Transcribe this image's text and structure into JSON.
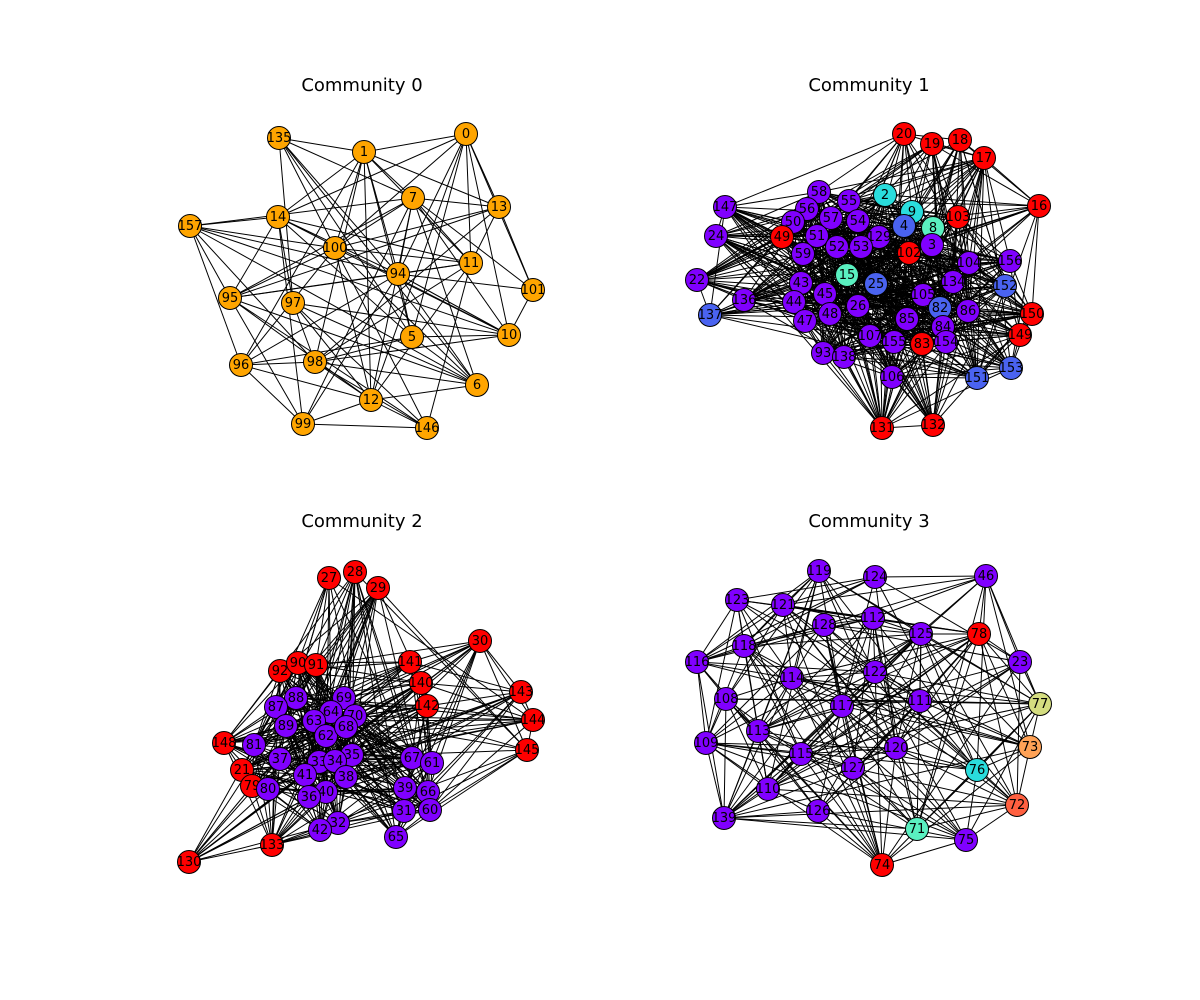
{
  "panels": [
    {
      "title": "Community 0",
      "nodes": [
        {
          "id": "0",
          "c": "#ffa500"
        },
        {
          "id": "135",
          "c": "#ffa500"
        },
        {
          "id": "1",
          "c": "#ffa500"
        },
        {
          "id": "7",
          "c": "#ffa500"
        },
        {
          "id": "13",
          "c": "#ffa500"
        },
        {
          "id": "157",
          "c": "#ffa500"
        },
        {
          "id": "14",
          "c": "#ffa500"
        },
        {
          "id": "100",
          "c": "#ffa500"
        },
        {
          "id": "11",
          "c": "#ffa500"
        },
        {
          "id": "94",
          "c": "#ffa500"
        },
        {
          "id": "101",
          "c": "#ffa500"
        },
        {
          "id": "95",
          "c": "#ffa500"
        },
        {
          "id": "97",
          "c": "#ffa500"
        },
        {
          "id": "10",
          "c": "#ffa500"
        },
        {
          "id": "5",
          "c": "#ffa500"
        },
        {
          "id": "96",
          "c": "#ffa500"
        },
        {
          "id": "98",
          "c": "#ffa500"
        },
        {
          "id": "6",
          "c": "#ffa500"
        },
        {
          "id": "12",
          "c": "#ffa500"
        },
        {
          "id": "99",
          "c": "#ffa500"
        },
        {
          "id": "146",
          "c": "#ffa500"
        }
      ]
    },
    {
      "title": "Community 1",
      "nodes": [
        {
          "id": "20",
          "c": "#ff0000"
        },
        {
          "id": "19",
          "c": "#ff0000"
        },
        {
          "id": "18",
          "c": "#ff0000"
        },
        {
          "id": "17",
          "c": "#ff0000"
        },
        {
          "id": "16",
          "c": "#ff0000"
        },
        {
          "id": "58",
          "c": "#8000ff"
        },
        {
          "id": "2",
          "c": "#2adddd"
        },
        {
          "id": "55",
          "c": "#8000ff"
        },
        {
          "id": "147",
          "c": "#8000ff"
        },
        {
          "id": "56",
          "c": "#8000ff"
        },
        {
          "id": "9",
          "c": "#2adddd"
        },
        {
          "id": "57",
          "c": "#8000ff"
        },
        {
          "id": "54",
          "c": "#8000ff"
        },
        {
          "id": "4",
          "c": "#4a63f0"
        },
        {
          "id": "8",
          "c": "#5af0c0"
        },
        {
          "id": "103",
          "c": "#ff0000"
        },
        {
          "id": "50",
          "c": "#8000ff"
        },
        {
          "id": "24",
          "c": "#8000ff"
        },
        {
          "id": "49",
          "c": "#ff0000"
        },
        {
          "id": "51",
          "c": "#8000ff"
        },
        {
          "id": "129",
          "c": "#8000ff"
        },
        {
          "id": "3",
          "c": "#8000ff"
        },
        {
          "id": "52",
          "c": "#8000ff"
        },
        {
          "id": "53",
          "c": "#8000ff"
        },
        {
          "id": "102",
          "c": "#ff0000"
        },
        {
          "id": "59",
          "c": "#8000ff"
        },
        {
          "id": "104",
          "c": "#8000ff"
        },
        {
          "id": "156",
          "c": "#8000ff"
        },
        {
          "id": "22",
          "c": "#8000ff"
        },
        {
          "id": "15",
          "c": "#5af0c0"
        },
        {
          "id": "25",
          "c": "#4a63f0"
        },
        {
          "id": "134",
          "c": "#8000ff"
        },
        {
          "id": "152",
          "c": "#4a63f0"
        },
        {
          "id": "43",
          "c": "#8000ff"
        },
        {
          "id": "136",
          "c": "#8000ff"
        },
        {
          "id": "45",
          "c": "#8000ff"
        },
        {
          "id": "105",
          "c": "#8000ff"
        },
        {
          "id": "44",
          "c": "#8000ff"
        },
        {
          "id": "137",
          "c": "#4a63f0"
        },
        {
          "id": "26",
          "c": "#8000ff"
        },
        {
          "id": "82",
          "c": "#4a63f0"
        },
        {
          "id": "150",
          "c": "#ff0000"
        },
        {
          "id": "48",
          "c": "#8000ff"
        },
        {
          "id": "47",
          "c": "#8000ff"
        },
        {
          "id": "85",
          "c": "#8000ff"
        },
        {
          "id": "86",
          "c": "#8000ff"
        },
        {
          "id": "84",
          "c": "#8000ff"
        },
        {
          "id": "149",
          "c": "#ff0000"
        },
        {
          "id": "107",
          "c": "#8000ff"
        },
        {
          "id": "155",
          "c": "#8000ff"
        },
        {
          "id": "83",
          "c": "#ff0000"
        },
        {
          "id": "154",
          "c": "#8000ff"
        },
        {
          "id": "93",
          "c": "#8000ff"
        },
        {
          "id": "138",
          "c": "#8000ff"
        },
        {
          "id": "153",
          "c": "#4a63f0"
        },
        {
          "id": "106",
          "c": "#8000ff"
        },
        {
          "id": "151",
          "c": "#4a63f0"
        },
        {
          "id": "131",
          "c": "#ff0000"
        },
        {
          "id": "132",
          "c": "#ff0000"
        }
      ]
    },
    {
      "title": "Community 2",
      "nodes": [
        {
          "id": "27",
          "c": "#ff0000"
        },
        {
          "id": "28",
          "c": "#ff0000"
        },
        {
          "id": "29",
          "c": "#ff0000"
        },
        {
          "id": "30",
          "c": "#ff0000"
        },
        {
          "id": "92",
          "c": "#ff0000"
        },
        {
          "id": "90",
          "c": "#ff0000"
        },
        {
          "id": "91",
          "c": "#ff0000"
        },
        {
          "id": "141",
          "c": "#ff0000"
        },
        {
          "id": "140",
          "c": "#ff0000"
        },
        {
          "id": "143",
          "c": "#ff0000"
        },
        {
          "id": "88",
          "c": "#8000ff"
        },
        {
          "id": "69",
          "c": "#8000ff"
        },
        {
          "id": "87",
          "c": "#8000ff"
        },
        {
          "id": "142",
          "c": "#ff0000"
        },
        {
          "id": "64",
          "c": "#8000ff"
        },
        {
          "id": "144",
          "c": "#ff0000"
        },
        {
          "id": "89",
          "c": "#8000ff"
        },
        {
          "id": "63",
          "c": "#8000ff"
        },
        {
          "id": "70",
          "c": "#8000ff"
        },
        {
          "id": "62",
          "c": "#8000ff"
        },
        {
          "id": "68",
          "c": "#8000ff"
        },
        {
          "id": "148",
          "c": "#ff0000"
        },
        {
          "id": "81",
          "c": "#8000ff"
        },
        {
          "id": "145",
          "c": "#ff0000"
        },
        {
          "id": "35",
          "c": "#8000ff"
        },
        {
          "id": "37",
          "c": "#8000ff"
        },
        {
          "id": "67",
          "c": "#8000ff"
        },
        {
          "id": "33",
          "c": "#8000ff"
        },
        {
          "id": "34",
          "c": "#8000ff"
        },
        {
          "id": "61",
          "c": "#8000ff"
        },
        {
          "id": "21",
          "c": "#ff0000"
        },
        {
          "id": "41",
          "c": "#8000ff"
        },
        {
          "id": "38",
          "c": "#8000ff"
        },
        {
          "id": "79",
          "c": "#ff0000"
        },
        {
          "id": "80",
          "c": "#8000ff"
        },
        {
          "id": "39",
          "c": "#8000ff"
        },
        {
          "id": "40",
          "c": "#8000ff"
        },
        {
          "id": "66",
          "c": "#8000ff"
        },
        {
          "id": "36",
          "c": "#8000ff"
        },
        {
          "id": "31",
          "c": "#8000ff"
        },
        {
          "id": "60",
          "c": "#8000ff"
        },
        {
          "id": "32",
          "c": "#8000ff"
        },
        {
          "id": "42",
          "c": "#8000ff"
        },
        {
          "id": "65",
          "c": "#8000ff"
        },
        {
          "id": "133",
          "c": "#ff0000"
        },
        {
          "id": "130",
          "c": "#ff0000"
        }
      ]
    },
    {
      "title": "Community 3",
      "nodes": [
        {
          "id": "119",
          "c": "#8000ff"
        },
        {
          "id": "124",
          "c": "#8000ff"
        },
        {
          "id": "46",
          "c": "#8000ff"
        },
        {
          "id": "123",
          "c": "#8000ff"
        },
        {
          "id": "121",
          "c": "#8000ff"
        },
        {
          "id": "112",
          "c": "#8000ff"
        },
        {
          "id": "128",
          "c": "#8000ff"
        },
        {
          "id": "125",
          "c": "#8000ff"
        },
        {
          "id": "78",
          "c": "#ff0000"
        },
        {
          "id": "118",
          "c": "#8000ff"
        },
        {
          "id": "116",
          "c": "#8000ff"
        },
        {
          "id": "23",
          "c": "#8000ff"
        },
        {
          "id": "114",
          "c": "#8000ff"
        },
        {
          "id": "122",
          "c": "#8000ff"
        },
        {
          "id": "108",
          "c": "#8000ff"
        },
        {
          "id": "117",
          "c": "#8000ff"
        },
        {
          "id": "111",
          "c": "#8000ff"
        },
        {
          "id": "77",
          "c": "#d4dd80"
        },
        {
          "id": "113",
          "c": "#8000ff"
        },
        {
          "id": "109",
          "c": "#8000ff"
        },
        {
          "id": "115",
          "c": "#8000ff"
        },
        {
          "id": "120",
          "c": "#8000ff"
        },
        {
          "id": "73",
          "c": "#ffa256"
        },
        {
          "id": "127",
          "c": "#8000ff"
        },
        {
          "id": "76",
          "c": "#2adddd"
        },
        {
          "id": "110",
          "c": "#8000ff"
        },
        {
          "id": "139",
          "c": "#8000ff"
        },
        {
          "id": "126",
          "c": "#8000ff"
        },
        {
          "id": "72",
          "c": "#ff6040"
        },
        {
          "id": "71",
          "c": "#5af0c0"
        },
        {
          "id": "75",
          "c": "#8000ff"
        },
        {
          "id": "74",
          "c": "#ff0000"
        }
      ]
    }
  ]
}
